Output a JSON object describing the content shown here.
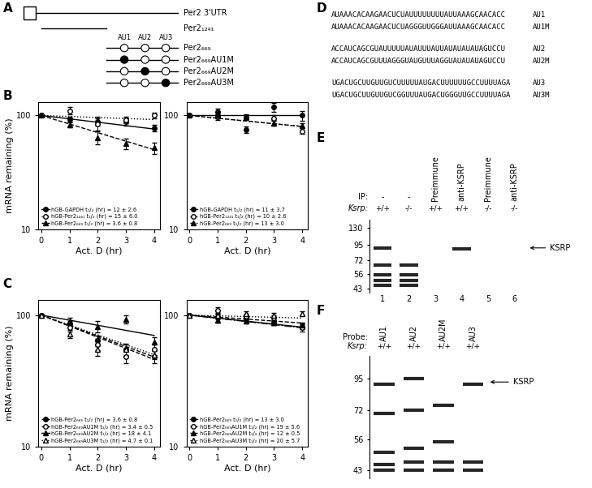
{
  "panel_labels": [
    "A",
    "B",
    "C",
    "D",
    "E",
    "F"
  ],
  "chart_data": [
    {
      "type": "line",
      "log": "y",
      "color": "#000000",
      "xlabel": "Act. D (hr)",
      "ylabel": "mRNA remaining (%)",
      "x": [
        0,
        1,
        2,
        3,
        4
      ],
      "fit_x": [
        0,
        4
      ],
      "xlim": [
        -0.1,
        4.2
      ],
      "ylim": [
        10,
        130
      ],
      "xticks": [
        0,
        1,
        2,
        3,
        4
      ],
      "yticks": [
        10,
        100
      ],
      "legend": "lower left",
      "series": [
        {
          "name": "hGB-GAPDH t₁/₂ (hr) = 12 ± 2.6",
          "marker": "circle",
          "line_style": "solid",
          "values": [
            100,
            93,
            89,
            88,
            78
          ],
          "errors": [
            0,
            5,
            8,
            6,
            5
          ],
          "fit": [
            100,
            76
          ]
        },
        {
          "name": "hGB-Per2₁₂₄₁ t₁/₂ (hr) = 15 ± 6.0",
          "marker": "circle_open",
          "line_style": "dotted",
          "values": [
            100,
            110,
            84,
            92,
            100
          ],
          "errors": [
            0,
            8,
            10,
            6,
            5
          ],
          "fit": [
            100,
            92
          ]
        },
        {
          "name": "hGB-Per2₆₆₉ t₁/₂ (hr) = 3.6 ± 0.8",
          "marker": "triangle",
          "line_style": "dashed",
          "values": [
            100,
            83,
            64,
            57,
            52
          ],
          "errors": [
            0,
            4,
            8,
            6,
            6
          ],
          "fit": [
            100,
            50
          ]
        }
      ]
    },
    {
      "type": "line",
      "log": "y",
      "color": "#000000",
      "xlabel": "Act. D (hr)",
      "x": [
        0,
        1,
        2,
        3,
        4
      ],
      "fit_x": [
        0,
        4
      ],
      "xlim": [
        -0.1,
        4.2
      ],
      "ylim": [
        10,
        130
      ],
      "xticks": [
        0,
        1,
        2,
        3,
        4
      ],
      "yticks": [
        10,
        100
      ],
      "legend": "lower left",
      "series": [
        {
          "name": "hGB-GAPDH t₁/₂ (hr) = 11 ± 3.7",
          "marker": "circle",
          "line_style": "solid",
          "values": [
            100,
            108,
            75,
            118,
            100
          ],
          "errors": [
            0,
            6,
            5,
            10,
            10
          ],
          "fit": [
            100,
            100
          ]
        },
        {
          "name": "hGB-Per2₁₂₄₁ t₁/₂ (hr) = 10 ± 2.6",
          "marker": "circle_open",
          "line_style": "dotted",
          "values": [
            100,
            97,
            96,
            95,
            73
          ],
          "errors": [
            0,
            5,
            5,
            5,
            4
          ],
          "fit": [
            100,
            80
          ]
        },
        {
          "name": "hGB-Per2₆₆₉ t₁/₂ (hr) = 13 ± 3.0",
          "marker": "triangle",
          "line_style": "dashed",
          "values": [
            100,
            100,
            98,
            86,
            82
          ],
          "errors": [
            0,
            6,
            5,
            5,
            4
          ],
          "fit": [
            100,
            80
          ]
        }
      ]
    },
    {
      "type": "line",
      "log": "y",
      "color": "#000000",
      "xlabel": "Act. D (hr)",
      "ylabel": "mRNA remaining (%)",
      "x": [
        0,
        1,
        2,
        3,
        4
      ],
      "fit_x": [
        0,
        4
      ],
      "xlim": [
        -0.1,
        4.2
      ],
      "ylim": [
        10,
        130
      ],
      "xticks": [
        0,
        1,
        2,
        3,
        4
      ],
      "yticks": [
        10,
        100
      ],
      "legend": "lower left",
      "series": [
        {
          "name": "hGB-Per2₆₆₉ t₁/₂ (hr) = 3.6 ± 0.8",
          "marker": "circle",
          "line_style": "dashed",
          "values": [
            100,
            85,
            64,
            55,
            48
          ],
          "errors": [
            0,
            5,
            6,
            6,
            5
          ],
          "fit": [
            100,
            48
          ]
        },
        {
          "name": "hGB-Per2₆₆₉AU1M t₁/₂ (hr) = 3.4 ± 0.5",
          "marker": "circle_open",
          "line_style": "dashed",
          "values": [
            100,
            80,
            60,
            48,
            55
          ],
          "errors": [
            0,
            5,
            6,
            5,
            5
          ],
          "fit": [
            100,
            46
          ]
        },
        {
          "name": "hGB-Per2₆₆₉AU2M t₁/₂ (hr) = 18 ± 4.1",
          "marker": "triangle",
          "line_style": "solid",
          "values": [
            100,
            90,
            82,
            93,
            62
          ],
          "errors": [
            0,
            6,
            8,
            6,
            6
          ],
          "fit": [
            100,
            70
          ]
        },
        {
          "name": "hGB-Per2₆₆₉AU3M t₁/₂ (hr) = 4.7 ± 0.1",
          "marker": "triangle_open",
          "line_style": "dotted",
          "values": [
            100,
            72,
            55,
            55,
            50
          ],
          "errors": [
            0,
            5,
            6,
            5,
            4
          ],
          "fit": [
            100,
            50
          ]
        }
      ]
    },
    {
      "type": "line",
      "log": "y",
      "color": "#000000",
      "xlabel": "Act. D (hr)",
      "x": [
        0,
        1,
        2,
        3,
        4
      ],
      "fit_x": [
        0,
        4
      ],
      "xlim": [
        -0.1,
        4.2
      ],
      "ylim": [
        10,
        130
      ],
      "xticks": [
        0,
        1,
        2,
        3,
        4
      ],
      "yticks": [
        10,
        100
      ],
      "legend": "lower left",
      "series": [
        {
          "name": "hGB-Per2₆₆₉ t₁/₂ (hr) = 13 ± 3.0",
          "marker": "circle",
          "line_style": "solid",
          "values": [
            100,
            97,
            96,
            88,
            82
          ],
          "errors": [
            0,
            4,
            4,
            4,
            4
          ],
          "fit": [
            100,
            81
          ]
        },
        {
          "name": "hGB-Per2₆₆₉AU1M t₁/₂ (hr) = 19 ± 5.6",
          "marker": "circle_open",
          "line_style": "dashed",
          "values": [
            100,
            108,
            98,
            95,
            80
          ],
          "errors": [
            0,
            6,
            5,
            5,
            5
          ],
          "fit": [
            100,
            87
          ]
        },
        {
          "name": "hGB-Per2₆₆₉AU2M t₁/₂ (hr) = 12 ± 0.5",
          "marker": "triangle",
          "line_style": "dashdot",
          "values": [
            100,
            92,
            90,
            88,
            84
          ],
          "errors": [
            0,
            4,
            4,
            4,
            4
          ],
          "fit": [
            100,
            80
          ]
        },
        {
          "name": "hGB-Per2₆₆₉AU3M t₁/₂ (hr) = 20 ± 5.7",
          "marker": "triangle_open",
          "line_style": "dotted",
          "values": [
            100,
            100,
            103,
            100,
            103
          ],
          "errors": [
            0,
            4,
            4,
            4,
            4
          ],
          "fit": [
            100,
            95
          ]
        }
      ]
    }
  ],
  "diagram": {
    "utr_label": "Per2 3'UTR",
    "truncation_label": "Per2₁₂₄₁",
    "au_labels": [
      "AU1",
      "AU2",
      "AU3"
    ],
    "au_constructs": [
      {
        "label": "Per2₆₆₉",
        "mutated": [
          false,
          false,
          false
        ]
      },
      {
        "label": "Per2₆₆₉AU1M",
        "mutated": [
          true,
          false,
          false
        ]
      },
      {
        "label": "Per2₆₆₉AU2M",
        "mutated": [
          false,
          true,
          false
        ]
      },
      {
        "label": "Per2₆₆₉AU3M",
        "mutated": [
          false,
          false,
          true
        ]
      }
    ]
  },
  "sequences": [
    {
      "seq": "AUAAACACAAGAACUCUAUUUUUUUUAUUAAAGCAACACC",
      "label": "AU1"
    },
    {
      "seq": "AUAAACACAAGAACUCUAGGGUUGGGAUUAAAGCAACACC",
      "label": "AU1M"
    },
    {
      "seq": "ACCAUCAGCGUAUUUUUAUAUUUAUUAUAUAUAUAGUCCU",
      "label": "AU2"
    },
    {
      "seq": "ACCAUCAGCGUUUAGGGUAUGUUUAGGUAUAUAUAGUCCU",
      "label": "AU2M"
    },
    {
      "seq": "UGACUGCUUGUUGUCUUUUUAUGACUUUUUUGCCUUUUAGA",
      "label": "AU3"
    },
    {
      "seq": "UGACUGCUUGUUGUCGGUUUAUGACUGGGUUGCCUUUUAGA",
      "label": "AU3M"
    }
  ],
  "gel_e": {
    "ylim": [
      40,
      150
    ],
    "mw": [
      130,
      95,
      72,
      56,
      43
    ],
    "row_labels": [
      "IP:",
      "Ksrp:"
    ],
    "ip": [
      "-",
      "-",
      "Preimmune",
      "anti-KSRP",
      "Preimmune",
      "anti-KSRP"
    ],
    "ksrp": [
      "+/+",
      "-/-",
      "+/+",
      "+/+",
      "-/-",
      "-/-"
    ],
    "lanes": [
      1,
      2,
      3,
      4,
      5,
      6
    ],
    "bands": [
      [
        90,
        66,
        55,
        50,
        46
      ],
      [
        66,
        55,
        50,
        46
      ],
      [],
      [
        88
      ],
      [],
      []
    ],
    "arrow_label": "KSRP",
    "arrow_kda": 90
  },
  "gel_f": {
    "ylim": [
      40,
      115
    ],
    "mw": [
      95,
      72,
      56,
      43
    ],
    "row_labels": [
      "Probe:",
      "Ksrp:"
    ],
    "probe": [
      "AU1",
      "AU2",
      "AU2M",
      "AU3"
    ],
    "ksrp": [
      "+/+",
      "+/+",
      "+/+",
      "+/+"
    ],
    "bands": [
      [
        90,
        70,
        50,
        45,
        43
      ],
      [
        95,
        72,
        52,
        46,
        43
      ],
      [
        75,
        55,
        46,
        43
      ],
      [
        90,
        46,
        43
      ]
    ],
    "arrow_label": "KSRP",
    "arrow_kda": 92
  }
}
